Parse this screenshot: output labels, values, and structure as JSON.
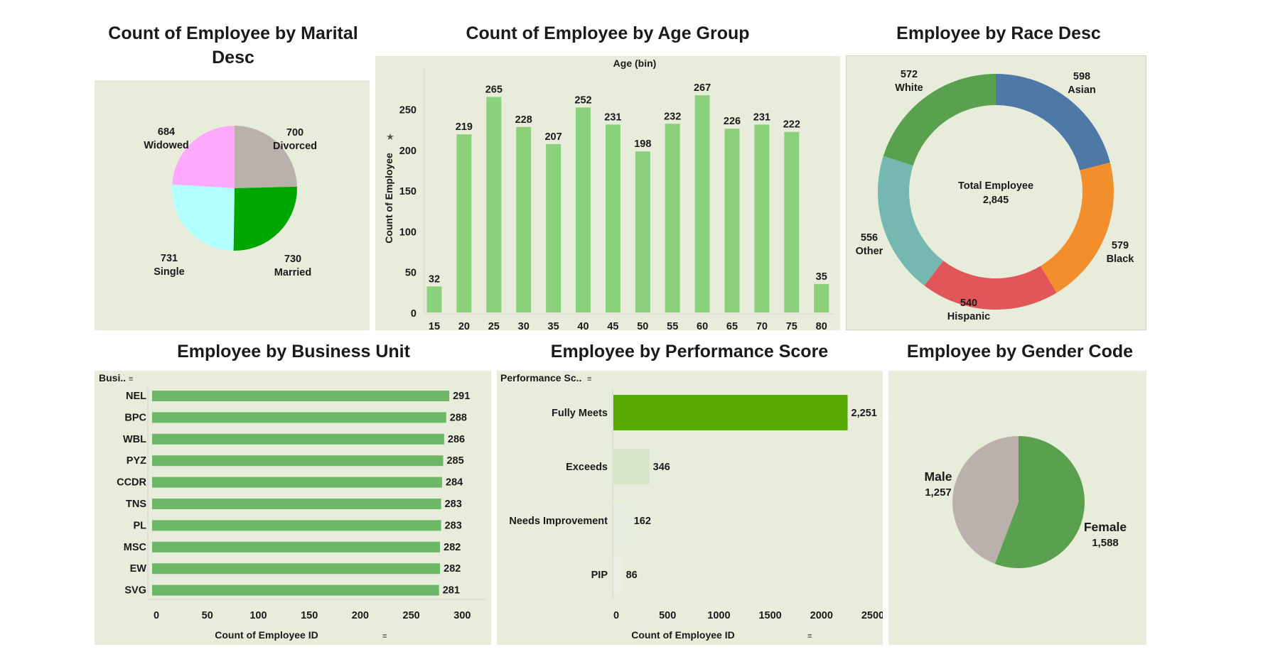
{
  "titles": {
    "marital": "Count of Employee by Marital Desc",
    "age": "Count of Employee by Age Group",
    "race": "Employee by Race Desc",
    "business": "Employee by Business Unit",
    "performance": "Employee by Performance Score",
    "gender": "Employee by Gender Code"
  },
  "colors": {
    "panel_bg": "#e8eddb",
    "age_bar": "#8bd17c",
    "business_bar": "#6db866",
    "perf_fully_meets": "#57ab00"
  },
  "chart_data": [
    {
      "id": "marital",
      "type": "pie",
      "title": "Count of Employee by Marital Desc",
      "slices": [
        {
          "label": "Divorced",
          "value": 700,
          "display": "700",
          "color": "#bab0ac"
        },
        {
          "label": "Married",
          "value": 730,
          "display": "730",
          "color": "#00a600"
        },
        {
          "label": "Single",
          "value": 731,
          "display": "731",
          "color": "#b2ffff"
        },
        {
          "label": "Widowed",
          "value": 684,
          "display": "684",
          "color": "#ffaaff"
        }
      ]
    },
    {
      "id": "age",
      "type": "bar",
      "title": "Count of Employee by Age Group",
      "header": "Age (bin)",
      "ylabel": "Count of Employee",
      "categories": [
        "15",
        "20",
        "25",
        "30",
        "35",
        "40",
        "45",
        "50",
        "55",
        "60",
        "65",
        "70",
        "75",
        "80"
      ],
      "values": [
        32,
        219,
        265,
        228,
        207,
        252,
        231,
        198,
        232,
        267,
        226,
        231,
        222,
        35
      ],
      "yticks": [
        0,
        50,
        100,
        150,
        200,
        250
      ],
      "ylim": [
        0,
        275
      ]
    },
    {
      "id": "race",
      "type": "pie",
      "title": "Employee by Race Desc",
      "donut": true,
      "center_label": "Total Employee",
      "center_value": "2,845",
      "slices": [
        {
          "label": "Asian",
          "value": 598,
          "display": "598",
          "color": "#4e79a7"
        },
        {
          "label": "Black",
          "value": 579,
          "display": "579",
          "color": "#f28e2b"
        },
        {
          "label": "Hispanic",
          "value": 540,
          "display": "540",
          "color": "#e15759"
        },
        {
          "label": "Other",
          "value": 556,
          "display": "556",
          "color": "#76b7b2"
        },
        {
          "label": "White",
          "value": 572,
          "display": "572",
          "color": "#59a14f"
        }
      ]
    },
    {
      "id": "business",
      "type": "bar",
      "orientation": "horizontal",
      "title": "Employee by Business Unit",
      "header": "Busi..",
      "xlabel": "Count of Employee ID",
      "categories": [
        "NEL",
        "BPC",
        "WBL",
        "PYZ",
        "CCDR",
        "TNS",
        "PL",
        "MSC",
        "EW",
        "SVG"
      ],
      "values": [
        291,
        288,
        286,
        285,
        284,
        283,
        283,
        282,
        282,
        281
      ],
      "xticks": [
        0,
        50,
        100,
        150,
        200,
        250,
        300
      ],
      "xlim": [
        0,
        300
      ]
    },
    {
      "id": "performance",
      "type": "bar",
      "orientation": "horizontal",
      "title": "Employee by Performance Score",
      "header": "Performance Sc..",
      "xlabel": "Count of Employee ID",
      "categories": [
        "Fully Meets",
        "Exceeds",
        "Needs Improvement",
        "PIP"
      ],
      "values": [
        2251,
        346,
        162,
        86
      ],
      "display": [
        "2,251",
        "346",
        "162",
        "86"
      ],
      "colors": [
        "#57ab00",
        "#d9e5c8",
        "#e6ebdf",
        "#ebeee6"
      ],
      "xticks": [
        0,
        500,
        1000,
        1500,
        2000,
        2500
      ],
      "xlim": [
        0,
        2500
      ]
    },
    {
      "id": "gender",
      "type": "pie",
      "title": "Employee by Gender Code",
      "slices": [
        {
          "label": "Female",
          "value": 1588,
          "display": "1,588",
          "color": "#59a14f"
        },
        {
          "label": "Male",
          "value": 1257,
          "display": "1,257",
          "color": "#bab0ac"
        }
      ]
    }
  ]
}
